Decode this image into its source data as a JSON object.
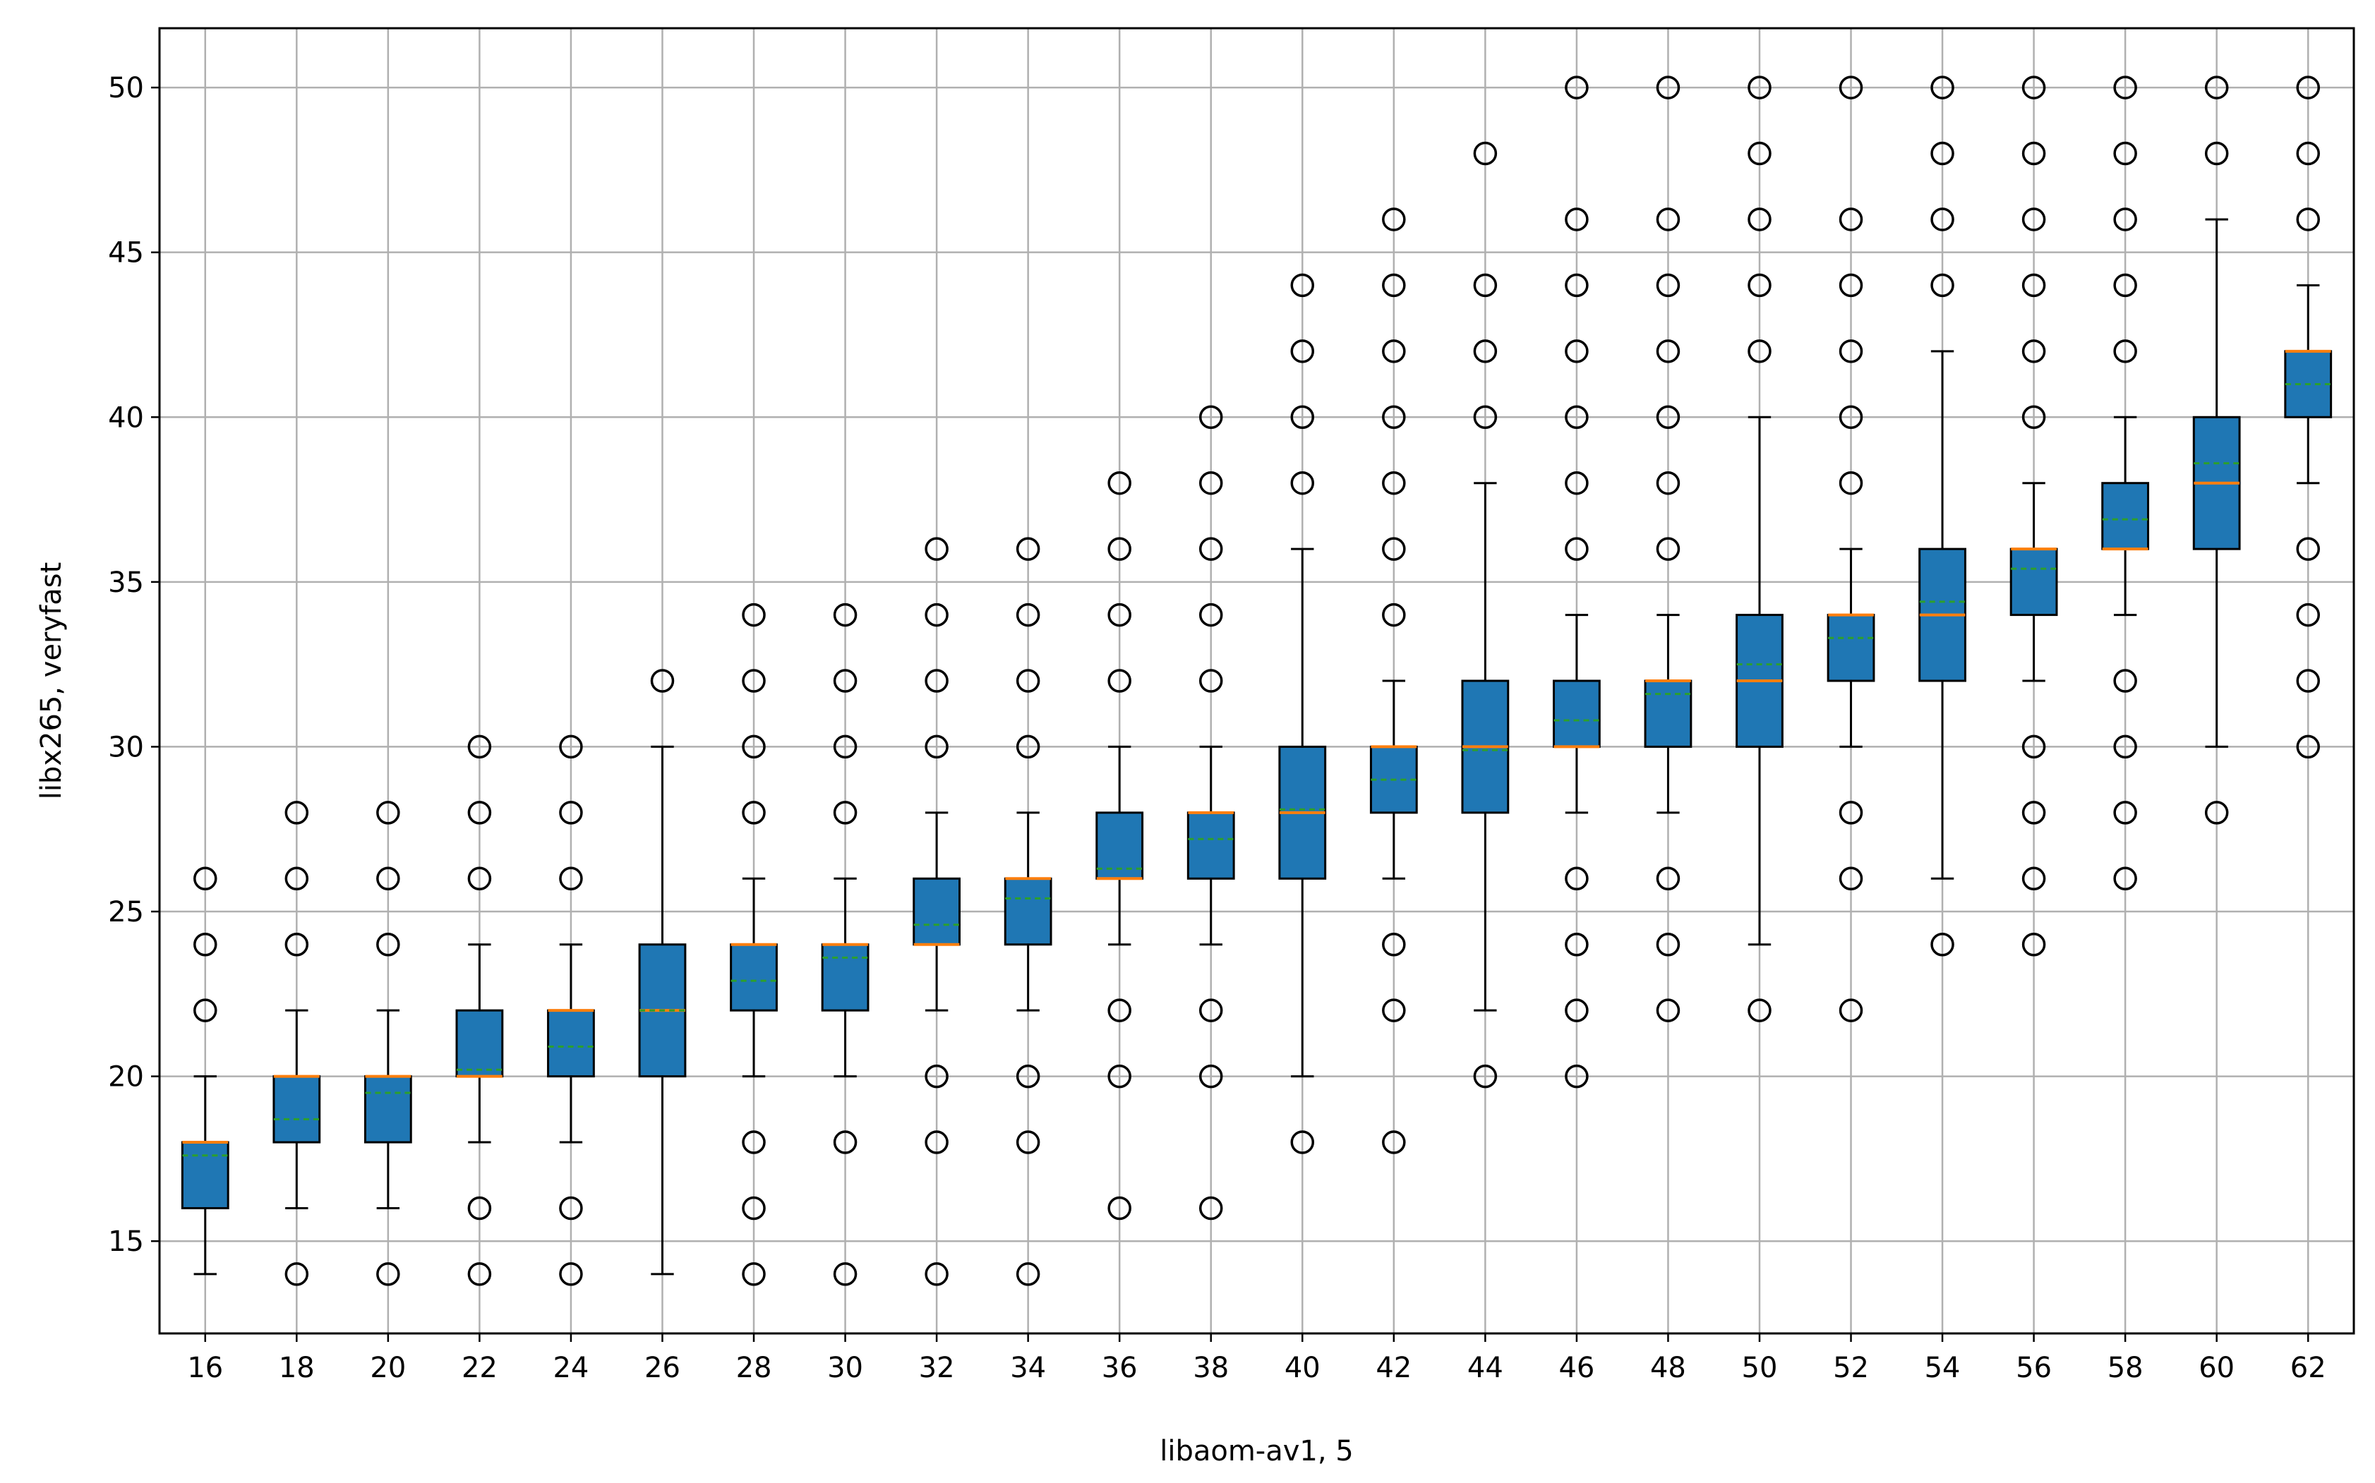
{
  "chart_data": {
    "type": "box",
    "xlabel": "libaom-av1, 5",
    "ylabel": "libx265, veryfast",
    "ylim": [
      12.2,
      51.8
    ],
    "yticks": [
      15,
      20,
      25,
      30,
      35,
      40,
      45,
      50
    ],
    "grid": true,
    "colors": {
      "box_fill": "#1f77b4",
      "median": "#ff7f0e",
      "mean": "#2ca02c",
      "grid": "#b0b0b0",
      "outline": "#000000"
    },
    "categories": [
      "16",
      "18",
      "20",
      "22",
      "24",
      "26",
      "28",
      "30",
      "32",
      "34",
      "36",
      "38",
      "40",
      "42",
      "44",
      "46",
      "48",
      "50",
      "52",
      "54",
      "56",
      "58",
      "60",
      "62"
    ],
    "boxes": [
      {
        "x": "16",
        "whislo": 14,
        "q1": 16,
        "median": 18,
        "q3": 18,
        "whishi": 20,
        "mean": 17.6,
        "fliers": [
          22,
          24,
          26
        ]
      },
      {
        "x": "18",
        "whislo": 16,
        "q1": 18,
        "median": 20,
        "q3": 20,
        "whishi": 22,
        "mean": 18.7,
        "fliers": [
          14,
          24,
          26,
          28
        ]
      },
      {
        "x": "20",
        "whislo": 16,
        "q1": 18,
        "median": 20,
        "q3": 20,
        "whishi": 22,
        "mean": 19.5,
        "fliers": [
          14,
          24,
          26,
          28
        ]
      },
      {
        "x": "22",
        "whislo": 18,
        "q1": 20,
        "median": 20,
        "q3": 22,
        "whishi": 24,
        "mean": 20.2,
        "fliers": [
          14,
          16,
          26,
          28,
          30
        ]
      },
      {
        "x": "24",
        "whislo": 18,
        "q1": 20,
        "median": 22,
        "q3": 22,
        "whishi": 24,
        "mean": 20.9,
        "fliers": [
          14,
          16,
          26,
          28,
          30
        ]
      },
      {
        "x": "26",
        "whislo": 14,
        "q1": 20,
        "median": 22,
        "q3": 24,
        "whishi": 30,
        "mean": 22.0,
        "fliers": [
          32
        ]
      },
      {
        "x": "28",
        "whislo": 20,
        "q1": 22,
        "median": 24,
        "q3": 24,
        "whishi": 26,
        "mean": 22.9,
        "fliers": [
          14,
          16,
          18,
          28,
          30,
          32,
          34
        ]
      },
      {
        "x": "30",
        "whislo": 20,
        "q1": 22,
        "median": 24,
        "q3": 24,
        "whishi": 26,
        "mean": 23.6,
        "fliers": [
          14,
          18,
          28,
          30,
          32,
          34
        ]
      },
      {
        "x": "32",
        "whislo": 22,
        "q1": 24,
        "median": 24,
        "q3": 26,
        "whishi": 28,
        "mean": 24.6,
        "fliers": [
          14,
          18,
          20,
          30,
          32,
          34,
          36
        ]
      },
      {
        "x": "34",
        "whislo": 22,
        "q1": 24,
        "median": 26,
        "q3": 26,
        "whishi": 28,
        "mean": 25.4,
        "fliers": [
          14,
          18,
          20,
          30,
          32,
          34,
          36
        ]
      },
      {
        "x": "36",
        "whislo": 24,
        "q1": 26,
        "median": 26,
        "q3": 28,
        "whishi": 30,
        "mean": 26.3,
        "fliers": [
          16,
          20,
          22,
          32,
          34,
          36,
          38
        ]
      },
      {
        "x": "38",
        "whislo": 24,
        "q1": 26,
        "median": 28,
        "q3": 28,
        "whishi": 30,
        "mean": 27.2,
        "fliers": [
          16,
          20,
          22,
          32,
          34,
          36,
          38,
          40
        ]
      },
      {
        "x": "40",
        "whislo": 20,
        "q1": 26,
        "median": 28,
        "q3": 30,
        "whishi": 36,
        "mean": 28.1,
        "fliers": [
          18,
          38,
          40,
          42,
          44
        ]
      },
      {
        "x": "42",
        "whislo": 26,
        "q1": 28,
        "median": 30,
        "q3": 30,
        "whishi": 32,
        "mean": 29.0,
        "fliers": [
          18,
          22,
          24,
          34,
          36,
          38,
          40,
          42,
          44,
          46
        ]
      },
      {
        "x": "44",
        "whislo": 22,
        "q1": 28,
        "median": 30,
        "q3": 32,
        "whishi": 38,
        "mean": 29.9,
        "fliers": [
          20,
          40,
          42,
          44,
          48
        ]
      },
      {
        "x": "46",
        "whislo": 28,
        "q1": 30,
        "median": 30,
        "q3": 32,
        "whishi": 34,
        "mean": 30.8,
        "fliers": [
          20,
          22,
          24,
          26,
          36,
          38,
          40,
          42,
          44,
          46,
          50
        ]
      },
      {
        "x": "48",
        "whislo": 28,
        "q1": 30,
        "median": 32,
        "q3": 32,
        "whishi": 34,
        "mean": 31.6,
        "fliers": [
          22,
          24,
          26,
          36,
          38,
          40,
          42,
          44,
          46,
          50
        ]
      },
      {
        "x": "50",
        "whislo": 24,
        "q1": 30,
        "median": 32,
        "q3": 34,
        "whishi": 40,
        "mean": 32.5,
        "fliers": [
          22,
          42,
          44,
          46,
          48,
          50
        ]
      },
      {
        "x": "52",
        "whislo": 30,
        "q1": 32,
        "median": 34,
        "q3": 34,
        "whishi": 36,
        "mean": 33.3,
        "fliers": [
          22,
          26,
          28,
          38,
          40,
          42,
          44,
          46,
          50
        ]
      },
      {
        "x": "54",
        "whislo": 26,
        "q1": 32,
        "median": 34,
        "q3": 36,
        "whishi": 42,
        "mean": 34.4,
        "fliers": [
          24,
          44,
          46,
          48,
          50
        ]
      },
      {
        "x": "56",
        "whislo": 32,
        "q1": 34,
        "median": 36,
        "q3": 36,
        "whishi": 38,
        "mean": 35.4,
        "fliers": [
          24,
          26,
          28,
          30,
          40,
          42,
          44,
          46,
          48,
          50
        ]
      },
      {
        "x": "58",
        "whislo": 34,
        "q1": 36,
        "median": 36,
        "q3": 38,
        "whishi": 40,
        "mean": 36.9,
        "fliers": [
          26,
          28,
          30,
          32,
          42,
          44,
          46,
          48,
          50
        ]
      },
      {
        "x": "60",
        "whislo": 30,
        "q1": 36,
        "median": 38,
        "q3": 40,
        "whishi": 46,
        "mean": 38.6,
        "fliers": [
          28,
          48,
          50
        ]
      },
      {
        "x": "62",
        "whislo": 38,
        "q1": 40,
        "median": 42,
        "q3": 42,
        "whishi": 44,
        "mean": 41.0,
        "fliers": [
          30,
          32,
          34,
          36,
          46,
          48,
          50
        ]
      }
    ]
  }
}
